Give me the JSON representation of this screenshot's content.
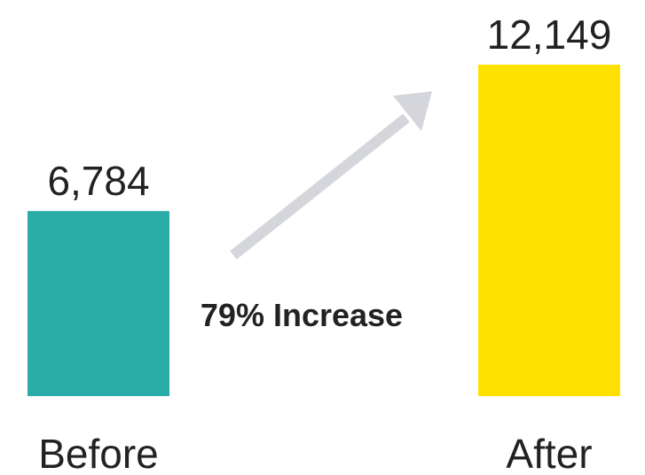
{
  "chart_data": {
    "type": "bar",
    "categories": [
      "Before",
      "After"
    ],
    "values": [
      6784,
      12149
    ],
    "value_labels": [
      "6,784",
      "12,149"
    ],
    "colors": [
      "#2aaca8",
      "#ffe100"
    ],
    "annotation": {
      "text": "79% Increase",
      "arrow_color": "#d4d6dc"
    },
    "title": "",
    "xlabel": "",
    "ylabel": "",
    "ylim": [
      0,
      12149
    ],
    "grid": false,
    "legend": "none"
  }
}
